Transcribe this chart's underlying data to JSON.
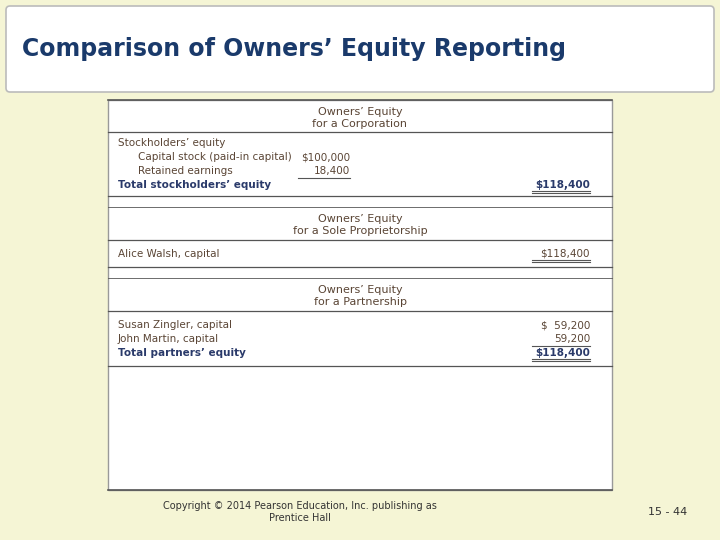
{
  "title": "Comparison of Owners’ Equity Reporting",
  "bg_color": "#f5f5d5",
  "title_color": "#1a3a6b",
  "title_bg": "#ffffff",
  "box_bg": "#ffffff",
  "text_color": "#5a4535",
  "bold_color": "#2a3a6a",
  "line_color": "#555555",
  "copyright": "Copyright © 2014 Pearson Education, Inc. publishing as\nPrentice Hall",
  "page_num": "15 - 44",
  "sections": [
    {
      "heading1": "Owners’ Equity",
      "heading2": "for a Corporation",
      "rows": [
        {
          "label": "Stockholders’ equity",
          "indent": 0,
          "col1": "",
          "col2": "",
          "bold": false,
          "underline_col1": false,
          "underline_col2": false
        },
        {
          "label": "Capital stock (paid-in capital)",
          "indent": 1,
          "col1": "$100,000",
          "col2": "",
          "bold": false,
          "underline_col1": false,
          "underline_col2": false
        },
        {
          "label": "Retained earnings",
          "indent": 1,
          "col1": "18,400",
          "col2": "",
          "bold": false,
          "underline_col1": true,
          "underline_col2": false
        },
        {
          "label": "Total stockholders’ equity",
          "indent": 0,
          "col1": "",
          "col2": "$118,400",
          "bold": true,
          "underline_col1": false,
          "underline_col2": true
        }
      ]
    },
    {
      "heading1": "Owners’ Equity",
      "heading2": "for a Sole Proprietorship",
      "rows": [
        {
          "label": "Alice Walsh, capital",
          "indent": 0,
          "col1": "",
          "col2": "$118,400",
          "bold": false,
          "underline_col1": false,
          "underline_col2": true
        }
      ]
    },
    {
      "heading1": "Owners’ Equity",
      "heading2": "for a Partnership",
      "rows": [
        {
          "label": "Susan Zingler, capital",
          "indent": 0,
          "col1": "",
          "col2": "$  59,200",
          "bold": false,
          "underline_col1": false,
          "underline_col2": false
        },
        {
          "label": "John Martin, capital",
          "indent": 0,
          "col1": "",
          "col2": "59,200",
          "bold": false,
          "underline_col1": false,
          "underline_col2": true
        },
        {
          "label": "Total partners’ equity",
          "indent": 0,
          "col1": "",
          "col2": "$118,400",
          "bold": true,
          "underline_col1": false,
          "underline_col2": true
        }
      ]
    }
  ]
}
